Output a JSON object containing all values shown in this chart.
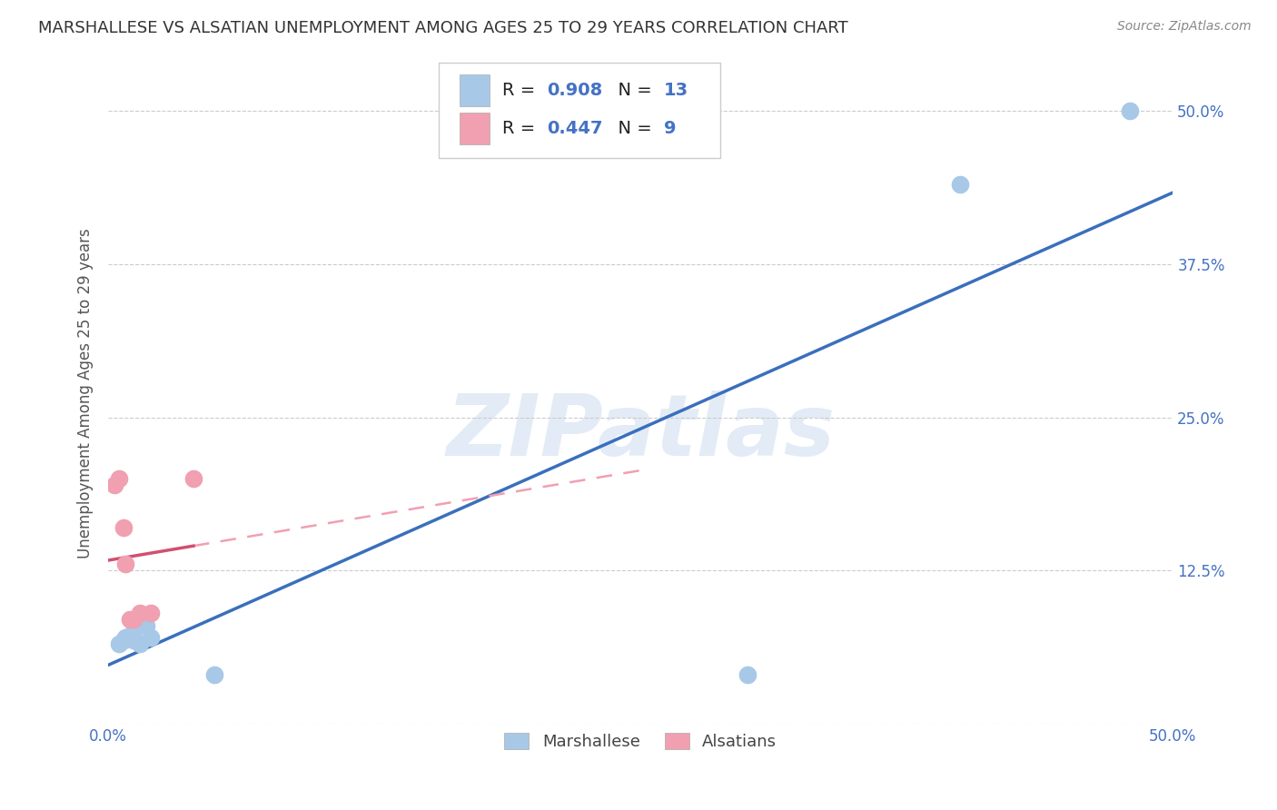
{
  "title": "MARSHALLESE VS ALSATIAN UNEMPLOYMENT AMONG AGES 25 TO 29 YEARS CORRELATION CHART",
  "source": "Source: ZipAtlas.com",
  "ylabel": "Unemployment Among Ages 25 to 29 years",
  "xlim": [
    0.0,
    0.5
  ],
  "ylim": [
    0.0,
    0.54
  ],
  "x_ticks": [
    0.0,
    0.5
  ],
  "x_tick_labels": [
    "0.0%",
    "50.0%"
  ],
  "y_ticks": [
    0.0,
    0.125,
    0.25,
    0.375,
    0.5
  ],
  "y_tick_labels": [
    "",
    "12.5%",
    "25.0%",
    "37.5%",
    "50.0%"
  ],
  "watermark": "ZIPatlas",
  "marshallese_x": [
    0.005,
    0.007,
    0.008,
    0.01,
    0.012,
    0.012,
    0.015,
    0.018,
    0.02,
    0.05,
    0.3,
    0.4,
    0.48
  ],
  "marshallese_y": [
    0.065,
    0.068,
    0.07,
    0.072,
    0.075,
    0.068,
    0.065,
    0.08,
    0.07,
    0.04,
    0.04,
    0.44,
    0.5
  ],
  "alsatian_x": [
    0.003,
    0.005,
    0.007,
    0.008,
    0.01,
    0.012,
    0.015,
    0.02,
    0.04
  ],
  "alsatian_y": [
    0.195,
    0.2,
    0.16,
    0.13,
    0.085,
    0.085,
    0.09,
    0.09,
    0.2
  ],
  "marshallese_R": 0.908,
  "marshallese_N": 13,
  "alsatian_R": 0.447,
  "alsatian_N": 9,
  "dot_color_marshallese": "#a8c8e8",
  "dot_color_alsatian": "#f0a0b0",
  "line_color_marshallese": "#3a6fbc",
  "line_color_alsatian_solid": "#d05070",
  "line_color_alsatian_dashed": "#f0a0b0",
  "legend_color_blue": "#a8c8e8",
  "legend_color_pink": "#f0a0b0",
  "title_fontsize": 13,
  "label_fontsize": 12,
  "tick_fontsize": 12,
  "legend_label_marshallese": "Marshallese",
  "legend_label_alsatians": "Alsatians"
}
